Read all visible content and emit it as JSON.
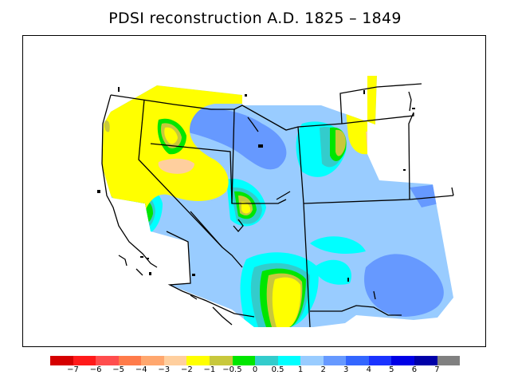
{
  "title": "PDSI reconstruction A.D. 1825 – 1849",
  "legend": {
    "colors": [
      "#d50000",
      "#ff1a1a",
      "#ff4d4d",
      "#ff7b4a",
      "#ffa76e",
      "#ffcf9e",
      "#ffff00",
      "#c8c83c",
      "#00e600",
      "#33cccc",
      "#00ffff",
      "#99ccff",
      "#6699ff",
      "#3366ff",
      "#1a33ff",
      "#0000e6",
      "#0000a8",
      "#808080"
    ],
    "tick_labels": [
      "−7",
      "−6",
      "−5",
      "−4",
      "−3",
      "−2",
      "−1",
      "−0.5",
      "0",
      "0.5",
      "1",
      "2",
      "3",
      "4",
      "5",
      "6",
      "7"
    ]
  }
}
